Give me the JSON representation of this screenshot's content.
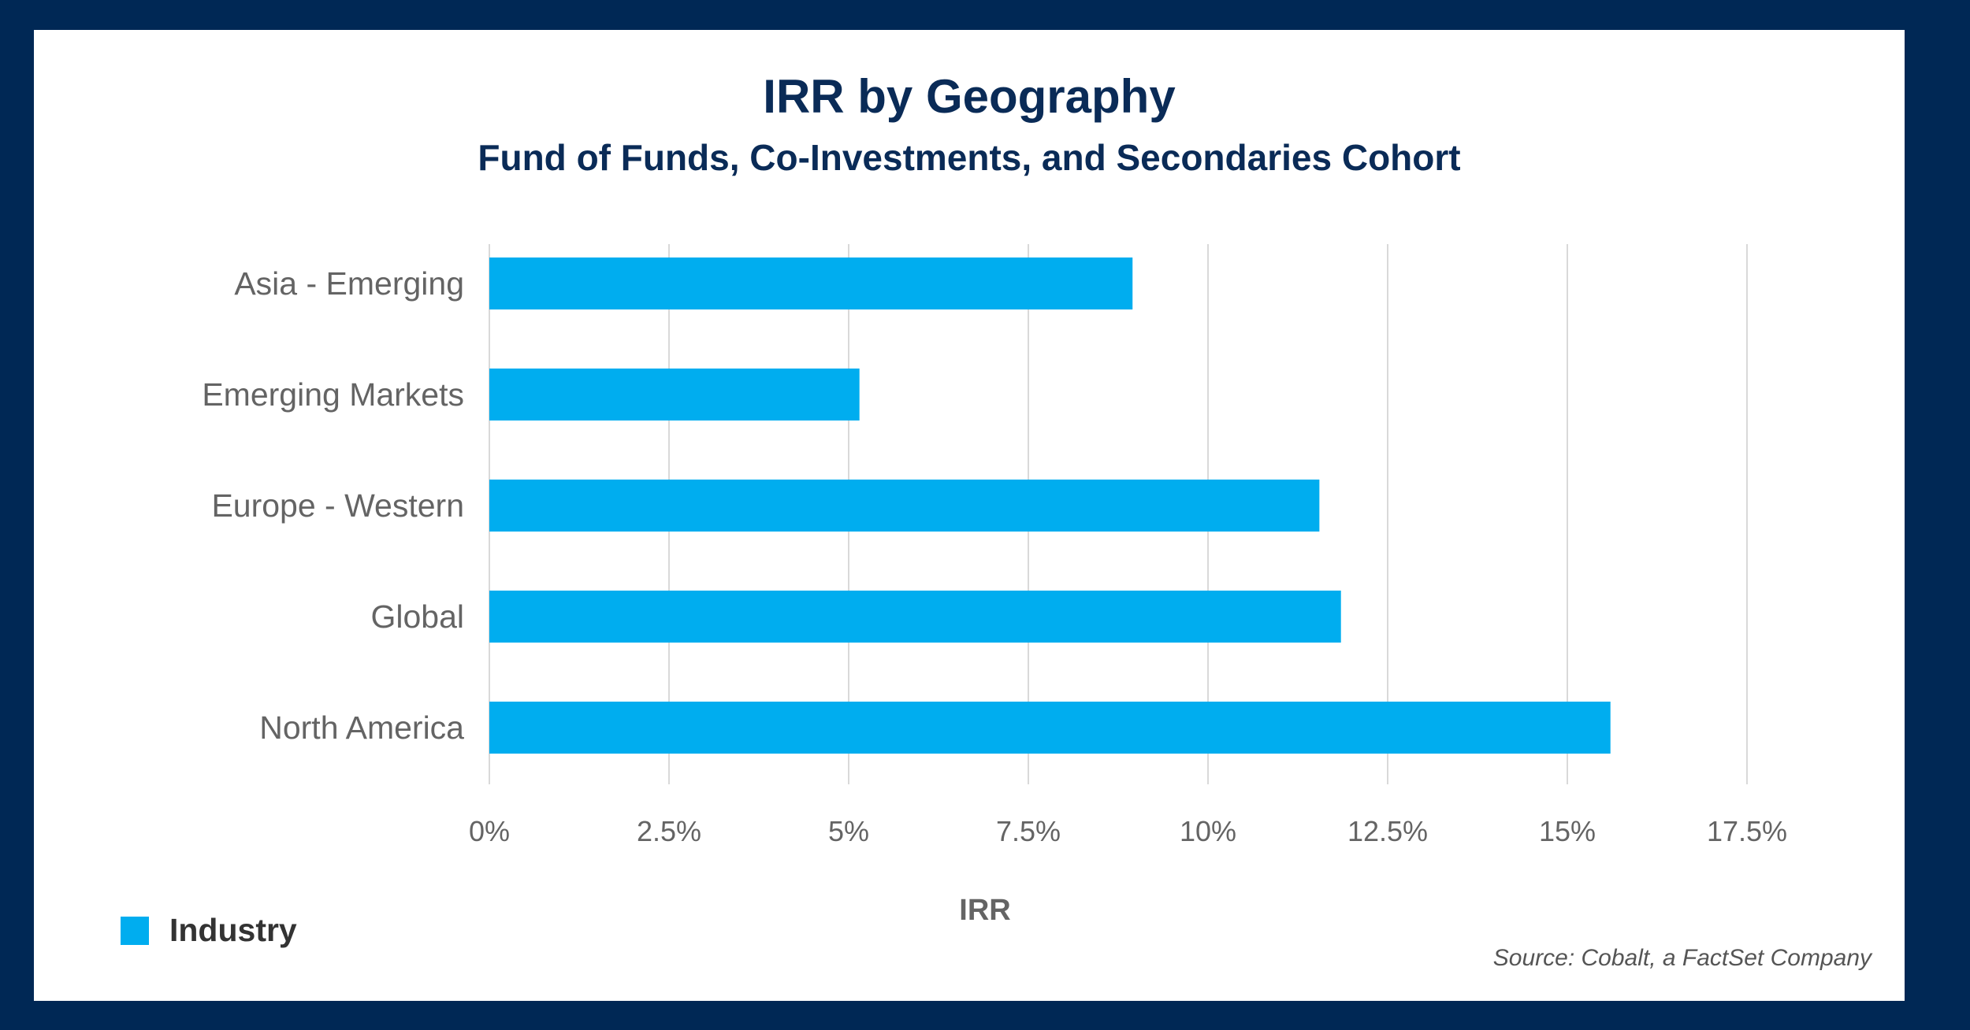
{
  "colors": {
    "frame": "#002855",
    "title": "#0a2b57",
    "bar": "#00adef",
    "grid": "#d9d9d9",
    "label": "#646464"
  },
  "chart_data": {
    "type": "bar",
    "orientation": "horizontal",
    "title": "IRR by Geography",
    "subtitle": "Fund of Funds, Co-Investments, and Secondaries Cohort",
    "categories": [
      "Asia - Emerging",
      "Emerging Markets",
      "Europe - Western",
      "Global",
      "North America"
    ],
    "series": [
      {
        "name": "Industry",
        "values": [
          8.95,
          5.15,
          11.55,
          11.85,
          15.6
        ]
      }
    ],
    "xlabel": "IRR",
    "ylabel": "",
    "xlim": [
      0,
      17.5
    ],
    "xticks": [
      0,
      2.5,
      5,
      7.5,
      10,
      12.5,
      15,
      17.5
    ],
    "xtick_labels": [
      "0%",
      "2.5%",
      "5%",
      "7.5%",
      "10%",
      "12.5%",
      "15%",
      "17.5%"
    ],
    "grid": "vertical",
    "legend": "bottom-left",
    "source": "Source: Cobalt, a FactSet Company"
  }
}
